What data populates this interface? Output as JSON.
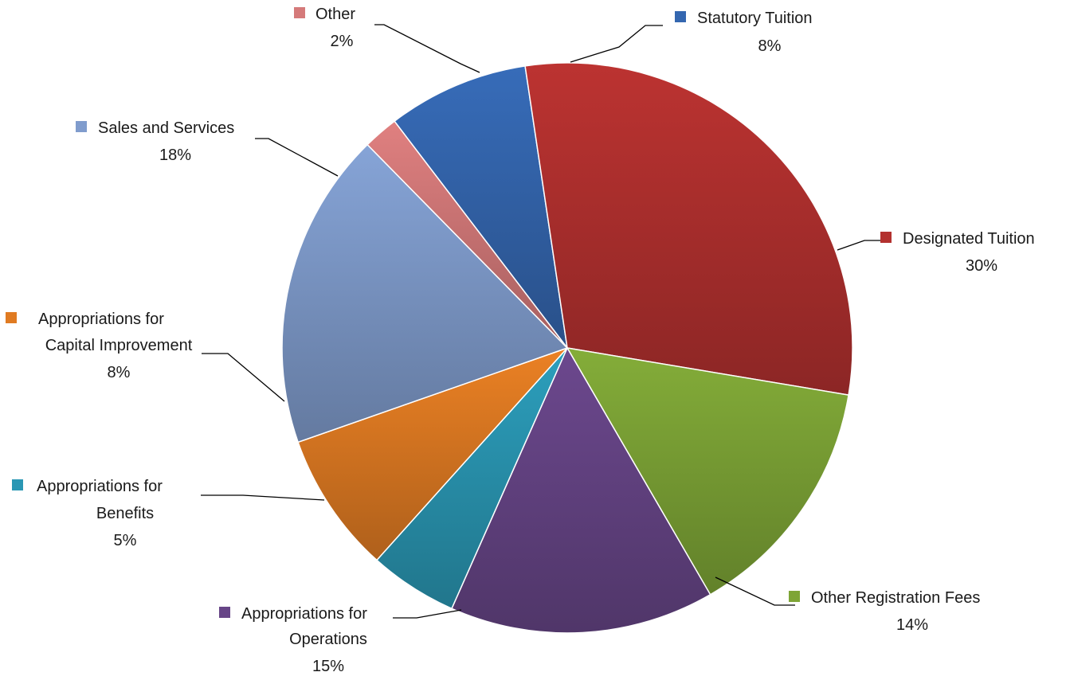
{
  "chart_data": {
    "type": "pie",
    "slices": [
      {
        "label": "Statutory Tuition",
        "value": 8,
        "pct_label": "8%",
        "color": "#3467b0"
      },
      {
        "label": "Designated Tuition",
        "value": 30,
        "pct_label": "30%",
        "color": "#b3312f"
      },
      {
        "label": "Other Registration Fees",
        "value": 14,
        "pct_label": "14%",
        "color": "#7ea536"
      },
      {
        "label": "Appropriations for Operations",
        "value": 15,
        "pct_label": "15%",
        "color": "#674587"
      },
      {
        "label": "Appropriations for Benefits",
        "value": 5,
        "pct_label": "5%",
        "color": "#2a97b4"
      },
      {
        "label": "Appropriations for Capital Improvement",
        "value": 8,
        "pct_label": "8%",
        "color": "#e07b22"
      },
      {
        "label": "Sales and Services",
        "value": 18,
        "pct_label": "18%",
        "color": "#809ccd"
      },
      {
        "label": "Other",
        "value": 2,
        "pct_label": "2%",
        "color": "#d57a7a"
      }
    ]
  }
}
